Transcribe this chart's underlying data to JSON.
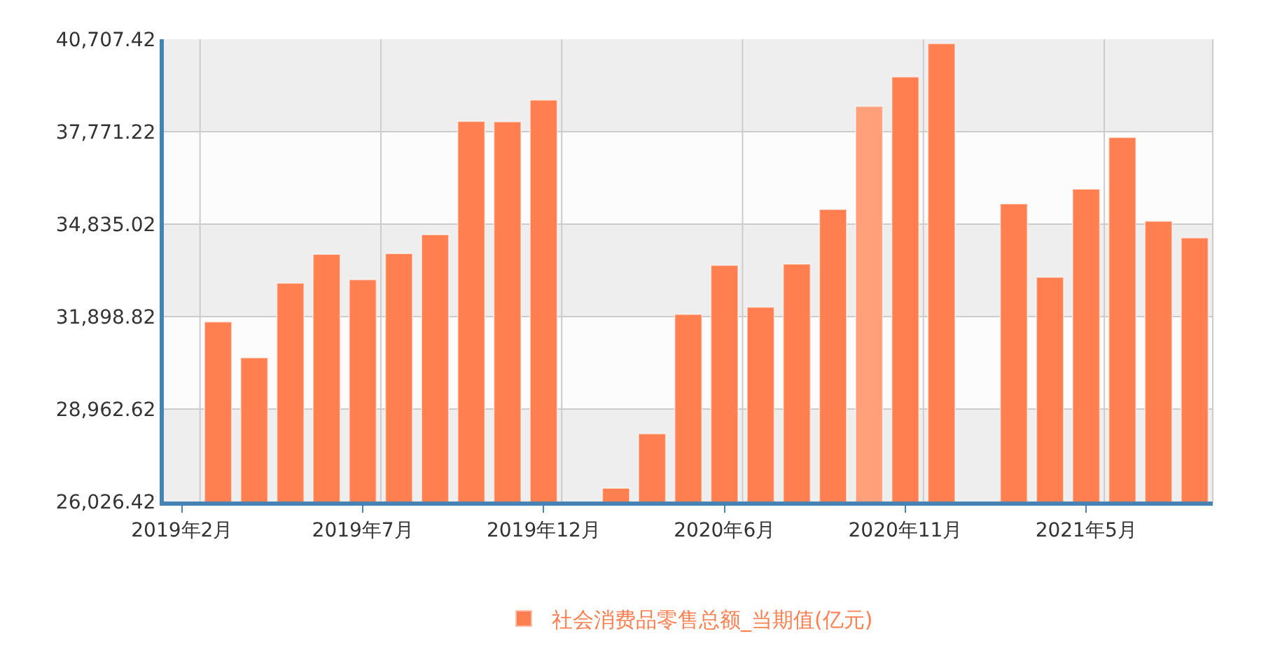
{
  "chart_data": {
    "type": "bar",
    "categories": [
      "2019年2月",
      null,
      null,
      null,
      null,
      "2019年7月",
      null,
      null,
      null,
      null,
      "2019年12月",
      null,
      null,
      null,
      null,
      "2020年6月",
      null,
      null,
      null,
      null,
      "2020年11月",
      null,
      null,
      null,
      null,
      "2021年5月",
      null,
      null,
      null
    ],
    "series": [
      {
        "name": "社会消费品零售总额_当期值(亿元)",
        "color": "#ff7f50",
        "values": [
          null,
          31730,
          30590,
          32960,
          33880,
          33070,
          33900,
          34500,
          38100,
          38090,
          38780,
          null,
          26450,
          28180,
          31970,
          33530,
          32200,
          33570,
          35300,
          38580,
          39510,
          40570,
          null,
          35480,
          33150,
          35950,
          37590,
          34930,
          34400
        ],
        "colors": [
          "#ff7f50",
          "#ff7f50",
          "#ff7f50",
          "#ff7f50",
          "#ff7f50",
          "#ff7f50",
          "#ff7f50",
          "#ff7f50",
          "#ff7f50",
          "#ff7f50",
          "#ff7f50",
          "#ff7f50",
          "#ff7f50",
          "#ff7f50",
          "#ff7f50",
          "#ff7f50",
          "#ff7f50",
          "#ff7f50",
          "#ff7f50",
          "#ffa07a",
          "#ff7f50",
          "#ff7f50",
          "#ff7f50",
          "#ff7f50",
          "#ff7f50",
          "#ff7f50",
          "#ff7f50",
          "#ff7f50",
          "#ff7f50"
        ]
      }
    ],
    "ylim": [
      26026.42,
      40707.42
    ],
    "yticks": [
      {
        "value": 26026.42,
        "label": "26,026.42"
      },
      {
        "value": 28962.62,
        "label": "28,962.62"
      },
      {
        "value": 31898.82,
        "label": "31,898.82"
      },
      {
        "value": 34835.02,
        "label": "34,835.02"
      },
      {
        "value": 37771.22,
        "label": "37,771.22"
      },
      {
        "value": 40707.42,
        "label": "40,707.42"
      }
    ],
    "grid": true,
    "legend": "bottom"
  }
}
